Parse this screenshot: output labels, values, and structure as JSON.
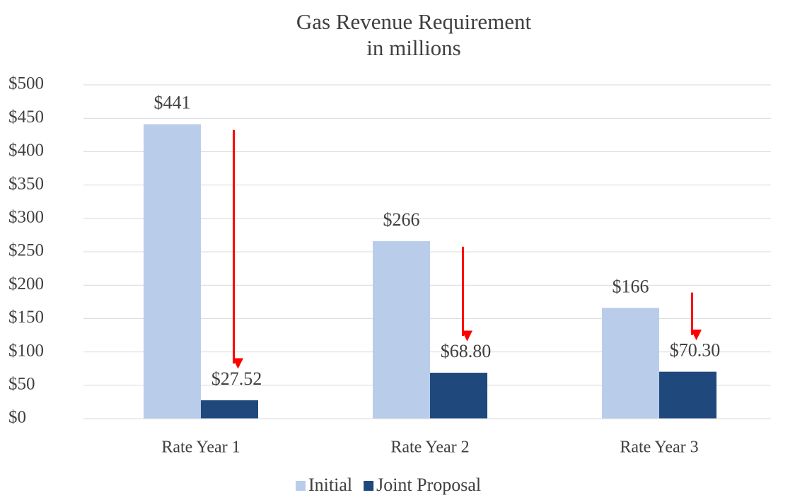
{
  "chart_data": {
    "type": "bar",
    "title": "Gas Revenue Requirement",
    "subtitle": "in millions",
    "categories": [
      "Rate Year 1",
      "Rate Year 2",
      "Rate Year 3"
    ],
    "series": [
      {
        "name": "Initial",
        "color": "#b9cdeb",
        "values": [
          441,
          266,
          166
        ],
        "value_labels": [
          "$441",
          "$266",
          "$166"
        ]
      },
      {
        "name": "Joint Proposal",
        "color": "#1f497d",
        "values": [
          27.52,
          68.8,
          70.3
        ],
        "value_labels": [
          "$27.52",
          "$68.80",
          "$70.30"
        ]
      }
    ],
    "ylim": [
      0,
      500
    ],
    "yticks": [
      {
        "value": 0,
        "label": "$0"
      },
      {
        "value": 50,
        "label": "$50"
      },
      {
        "value": 100,
        "label": "$100"
      },
      {
        "value": 150,
        "label": "$150"
      },
      {
        "value": 200,
        "label": "$200"
      },
      {
        "value": 250,
        "label": "$250"
      },
      {
        "value": 300,
        "label": "$300"
      },
      {
        "value": 350,
        "label": "$350"
      },
      {
        "value": 400,
        "label": "$400"
      },
      {
        "value": 450,
        "label": "$450"
      },
      {
        "value": 500,
        "label": "$500"
      }
    ],
    "grid": true,
    "legend": "bottom"
  }
}
